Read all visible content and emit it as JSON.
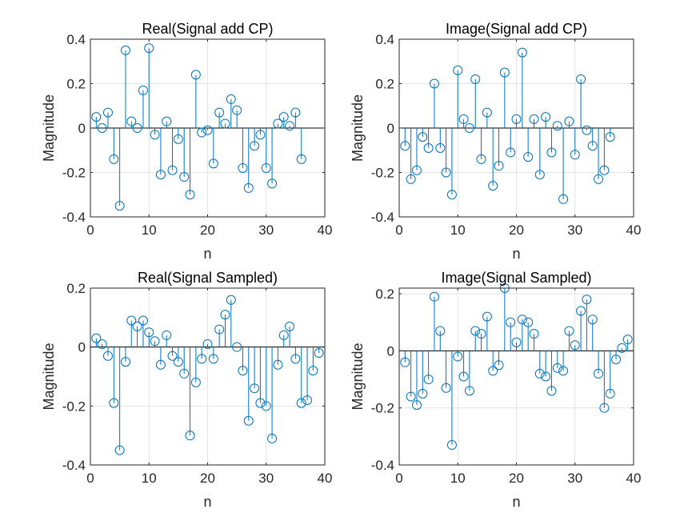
{
  "chart_data": [
    {
      "type": "stem",
      "title": "Real(Signal add CP)",
      "xlabel": "n",
      "ylabel": "Magnitude",
      "xlim": [
        0,
        40
      ],
      "ylim": [
        -0.4,
        0.4
      ],
      "xticks": [
        0,
        10,
        20,
        30,
        40
      ],
      "yticks": [
        -0.4,
        -0.2,
        0,
        0.2,
        0.4
      ],
      "ytick_labels": [
        "-0.4",
        "-0.2",
        "0",
        "0.2",
        "0.4"
      ],
      "grid": true,
      "color": "#0072BD",
      "x": [
        1,
        2,
        3,
        4,
        5,
        6,
        7,
        8,
        9,
        10,
        11,
        12,
        13,
        14,
        15,
        16,
        17,
        18,
        19,
        20,
        21,
        22,
        23,
        24,
        25,
        26,
        27,
        28,
        29,
        30,
        31,
        32,
        33,
        34,
        35,
        36
      ],
      "values": [
        0.05,
        0.0,
        0.07,
        -0.14,
        -0.35,
        0.35,
        0.03,
        0.0,
        0.17,
        0.36,
        -0.03,
        -0.21,
        0.03,
        -0.19,
        -0.05,
        -0.22,
        -0.3,
        0.24,
        -0.02,
        -0.01,
        -0.16,
        0.07,
        0.02,
        0.13,
        0.08,
        -0.18,
        -0.27,
        -0.08,
        -0.03,
        -0.18,
        -0.25,
        0.02,
        0.05,
        0.01,
        0.07,
        -0.14
      ]
    },
    {
      "type": "stem",
      "title": "Image(Signal add CP)",
      "xlabel": "n",
      "ylabel": "Magnitude",
      "xlim": [
        0,
        40
      ],
      "ylim": [
        -0.4,
        0.4
      ],
      "xticks": [
        0,
        10,
        20,
        30,
        40
      ],
      "yticks": [
        -0.4,
        -0.2,
        0,
        0.2,
        0.4
      ],
      "ytick_labels": [
        "-0.4",
        "-0.2",
        "0",
        "0.2",
        "0.4"
      ],
      "grid": true,
      "color": "#0072BD",
      "x": [
        1,
        2,
        3,
        4,
        5,
        6,
        7,
        8,
        9,
        10,
        11,
        12,
        13,
        14,
        15,
        16,
        17,
        18,
        19,
        20,
        21,
        22,
        23,
        24,
        25,
        26,
        27,
        28,
        29,
        30,
        31,
        32,
        33,
        34,
        35,
        36
      ],
      "values": [
        -0.08,
        -0.23,
        -0.19,
        -0.04,
        -0.09,
        0.2,
        -0.09,
        -0.2,
        -0.3,
        0.26,
        0.04,
        0.0,
        0.22,
        -0.14,
        0.07,
        -0.26,
        -0.17,
        0.25,
        -0.11,
        0.04,
        0.34,
        -0.13,
        0.04,
        -0.21,
        0.05,
        -0.11,
        0.01,
        -0.32,
        0.03,
        -0.12,
        0.22,
        -0.01,
        -0.08,
        -0.23,
        -0.19,
        -0.04
      ]
    },
    {
      "type": "stem",
      "title": "Real(Signal Sampled)",
      "xlabel": "n",
      "ylabel": "Magnitude",
      "xlim": [
        0,
        40
      ],
      "ylim": [
        -0.4,
        0.2
      ],
      "xticks": [
        0,
        10,
        20,
        30,
        40
      ],
      "yticks": [
        -0.4,
        -0.2,
        0,
        0.2
      ],
      "ytick_labels": [
        "-0.4",
        "-0.2",
        "0",
        "0.2"
      ],
      "grid": true,
      "color": "#0072BD",
      "x": [
        1,
        2,
        3,
        4,
        5,
        6,
        7,
        8,
        9,
        10,
        11,
        12,
        13,
        14,
        15,
        16,
        17,
        18,
        19,
        20,
        21,
        22,
        23,
        24,
        25,
        26,
        27,
        28,
        29,
        30,
        31,
        32,
        33,
        34,
        35,
        36,
        37,
        38,
        39
      ],
      "values": [
        0.03,
        0.01,
        -0.03,
        -0.19,
        -0.35,
        -0.05,
        0.09,
        0.07,
        0.09,
        0.05,
        0.02,
        -0.06,
        0.04,
        -0.03,
        -0.05,
        -0.09,
        -0.3,
        -0.12,
        -0.04,
        0.01,
        -0.04,
        0.06,
        0.11,
        0.16,
        0.0,
        -0.08,
        -0.25,
        -0.14,
        -0.19,
        -0.2,
        -0.31,
        -0.06,
        0.04,
        0.07,
        -0.04,
        -0.19,
        -0.18,
        -0.08,
        -0.02
      ]
    },
    {
      "type": "stem",
      "title": "Image(Signal Sampled)",
      "xlabel": "n",
      "ylabel": "Magnitude",
      "xlim": [
        0,
        40
      ],
      "ylim": [
        -0.4,
        0.22
      ],
      "xticks": [
        0,
        10,
        20,
        30,
        40
      ],
      "yticks": [
        -0.4,
        -0.2,
        0,
        0.2
      ],
      "ytick_labels": [
        "-0.4",
        "-0.2",
        "0",
        "0.2"
      ],
      "grid": true,
      "color": "#0072BD",
      "x": [
        1,
        2,
        3,
        4,
        5,
        6,
        7,
        8,
        9,
        10,
        11,
        12,
        13,
        14,
        15,
        16,
        17,
        18,
        19,
        20,
        21,
        22,
        23,
        24,
        25,
        26,
        27,
        28,
        29,
        30,
        31,
        32,
        33,
        34,
        35,
        36,
        37,
        38,
        39
      ],
      "values": [
        -0.04,
        -0.16,
        -0.19,
        -0.15,
        -0.1,
        0.19,
        0.07,
        -0.13,
        -0.33,
        -0.02,
        -0.09,
        -0.14,
        0.07,
        0.06,
        0.12,
        -0.07,
        -0.05,
        0.22,
        0.1,
        0.03,
        0.11,
        0.1,
        0.06,
        -0.08,
        -0.09,
        -0.14,
        -0.06,
        -0.07,
        0.07,
        0.02,
        0.14,
        0.18,
        0.11,
        -0.08,
        -0.2,
        -0.15,
        -0.03,
        0.01,
        0.04
      ]
    }
  ]
}
